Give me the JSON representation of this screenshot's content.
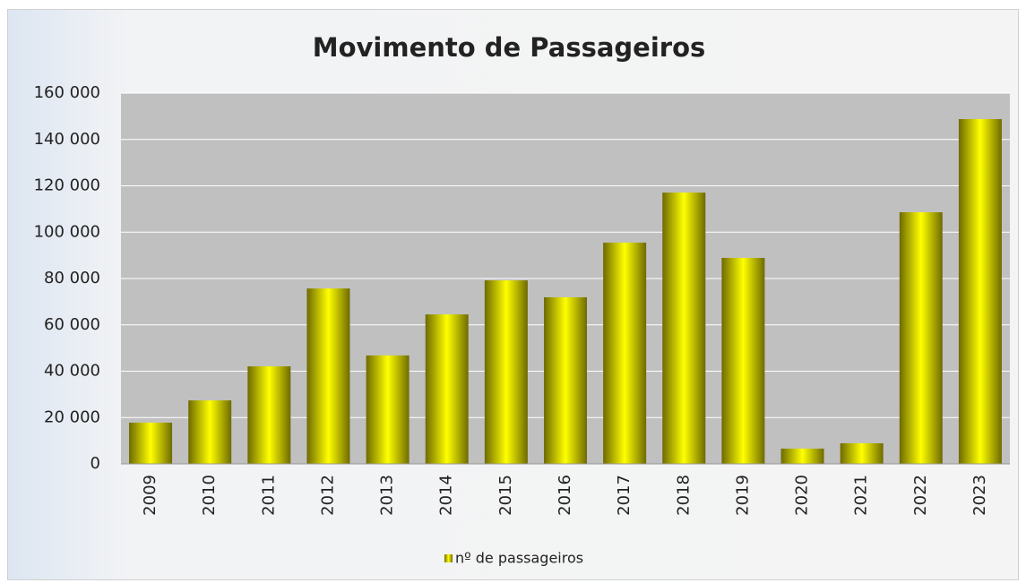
{
  "chart_data": {
    "type": "bar",
    "title": "Movimento de  Passageiros",
    "categories": [
      "2009",
      "2010",
      "2011",
      "2012",
      "2013",
      "2014",
      "2015",
      "2016",
      "2017",
      "2018",
      "2019",
      "2020",
      "2021",
      "2022",
      "2023"
    ],
    "series": [
      {
        "name": "nº de passageiros",
        "color": "#ffff00",
        "values": [
          17800,
          27400,
          42100,
          75700,
          46800,
          64500,
          79200,
          71900,
          95500,
          117100,
          88900,
          6600,
          8900,
          108600,
          148800
        ]
      }
    ],
    "ylim": [
      0,
      160000
    ],
    "yticks": [
      0,
      {
        "value": 20000,
        "label": "20 000"
      },
      {
        "value": 40000,
        "label": "40 000"
      },
      {
        "value": 60000,
        "label": "60 000"
      },
      {
        "value": 80000,
        "label": "80 000"
      },
      {
        "value": 100000,
        "label": "100 000"
      },
      {
        "value": 120000,
        "label": "120 000"
      },
      {
        "value": 140000,
        "label": "140 000"
      },
      {
        "value": 160000,
        "label": "160 000"
      }
    ],
    "grid": true,
    "legend": "bottom"
  }
}
